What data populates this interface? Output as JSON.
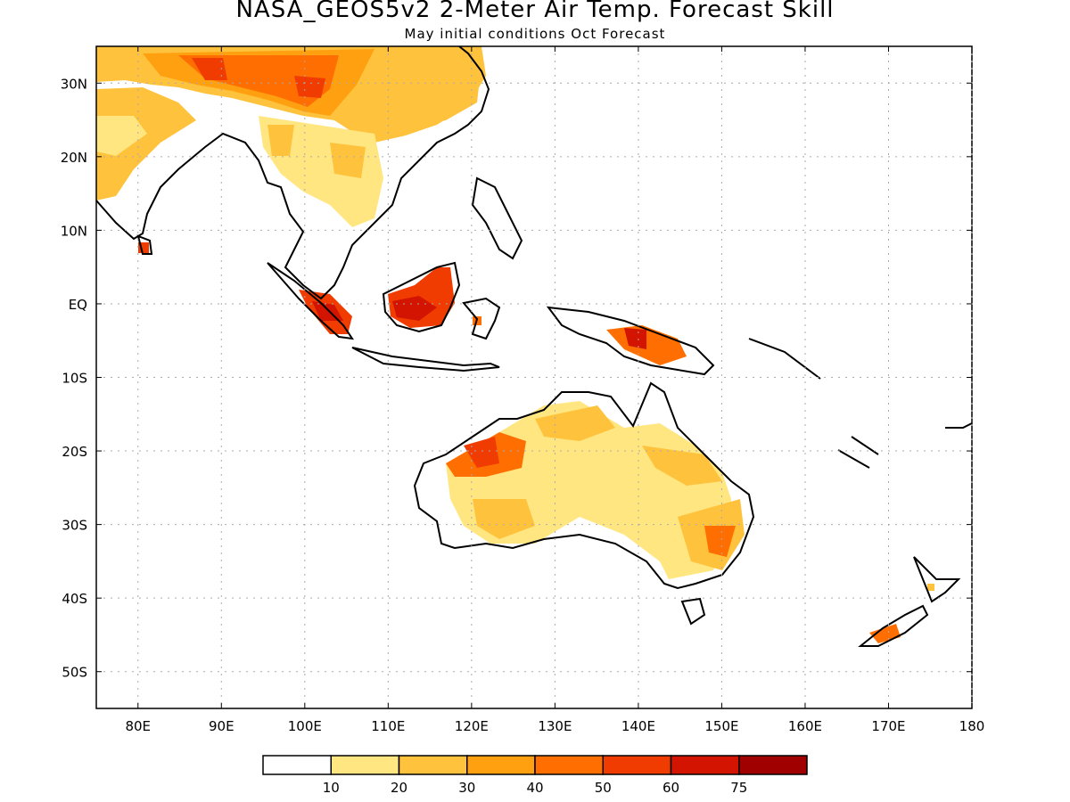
{
  "title": "NASA_GEOS5v2 2-Meter Air Temp. Forecast Skill",
  "subtitle": "May initial conditions  Oct Forecast",
  "lat_labels": [
    "30N",
    "20N",
    "10N",
    "EQ",
    "10S",
    "20S",
    "30S",
    "40S",
    "50S"
  ],
  "lon_labels": [
    "80E",
    "90E",
    "100E",
    "110E",
    "120E",
    "130E",
    "140E",
    "150E",
    "160E",
    "170E",
    "180"
  ],
  "colorbar": {
    "ticks": [
      "10",
      "20",
      "30",
      "40",
      "50",
      "60",
      "75"
    ],
    "colors": [
      "#ffffff",
      "#ffe680",
      "#ffc23c",
      "#ffa010",
      "#ff6e00",
      "#f03c00",
      "#d21400",
      "#a00000"
    ]
  },
  "map_region": {
    "lon_range": [
      75,
      180
    ],
    "lat_range": [
      -55,
      35
    ]
  }
}
